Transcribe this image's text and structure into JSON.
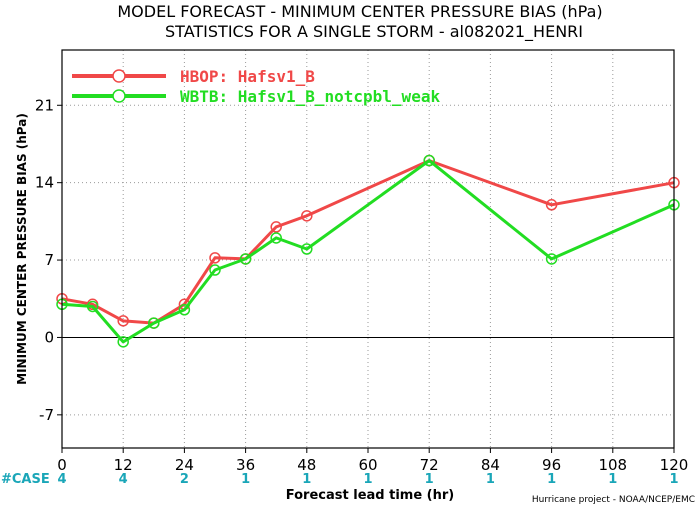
{
  "chart_data": {
    "type": "line",
    "title": "MODEL FORECAST - MINIMUM CENTER PRESSURE BIAS (hPa)",
    "subtitle": "STATISTICS FOR A SINGLE STORM - al082021_HENRI",
    "xlabel": "Forecast lead time (hr)",
    "ylabel": "MINIMUM CENTER PRESSURE BIAS (hPa)",
    "xlim": [
      0,
      120
    ],
    "ylim": [
      -10,
      26
    ],
    "xticks": [
      0,
      12,
      24,
      36,
      48,
      60,
      72,
      84,
      96,
      108,
      120
    ],
    "yticks": [
      -7,
      0,
      7,
      14,
      21
    ],
    "grid": true,
    "legend_position": "top-left",
    "series": [
      {
        "name": "HBOP: Hafsv1_B",
        "color": "#f04848",
        "x": [
          0,
          6,
          12,
          18,
          24,
          30,
          36,
          42,
          48,
          72,
          96,
          120
        ],
        "y": [
          3.5,
          3.0,
          1.5,
          1.3,
          3.0,
          7.2,
          7.1,
          10.0,
          11.0,
          16.0,
          12.0,
          14.0
        ]
      },
      {
        "name": "WBTB: Hafsv1_B_notcpbl_weak",
        "color": "#22dd22",
        "x": [
          0,
          6,
          12,
          18,
          24,
          30,
          36,
          42,
          48,
          72,
          96,
          120
        ],
        "y": [
          3.0,
          2.8,
          -0.4,
          1.3,
          2.5,
          6.1,
          7.1,
          9.0,
          8.0,
          16.0,
          7.1,
          12.0
        ]
      }
    ],
    "case_label": "#CASE",
    "case_counts": [
      {
        "x": 0,
        "n": "4"
      },
      {
        "x": 12,
        "n": "4"
      },
      {
        "x": 24,
        "n": "2"
      },
      {
        "x": 36,
        "n": "1"
      },
      {
        "x": 48,
        "n": "1"
      },
      {
        "x": 60,
        "n": "1"
      },
      {
        "x": 72,
        "n": "1"
      },
      {
        "x": 84,
        "n": "1"
      },
      {
        "x": 96,
        "n": "1"
      },
      {
        "x": 108,
        "n": "1"
      },
      {
        "x": 120,
        "n": "1"
      }
    ],
    "credit": "Hurricane project - NOAA/NCEP/EMC"
  }
}
